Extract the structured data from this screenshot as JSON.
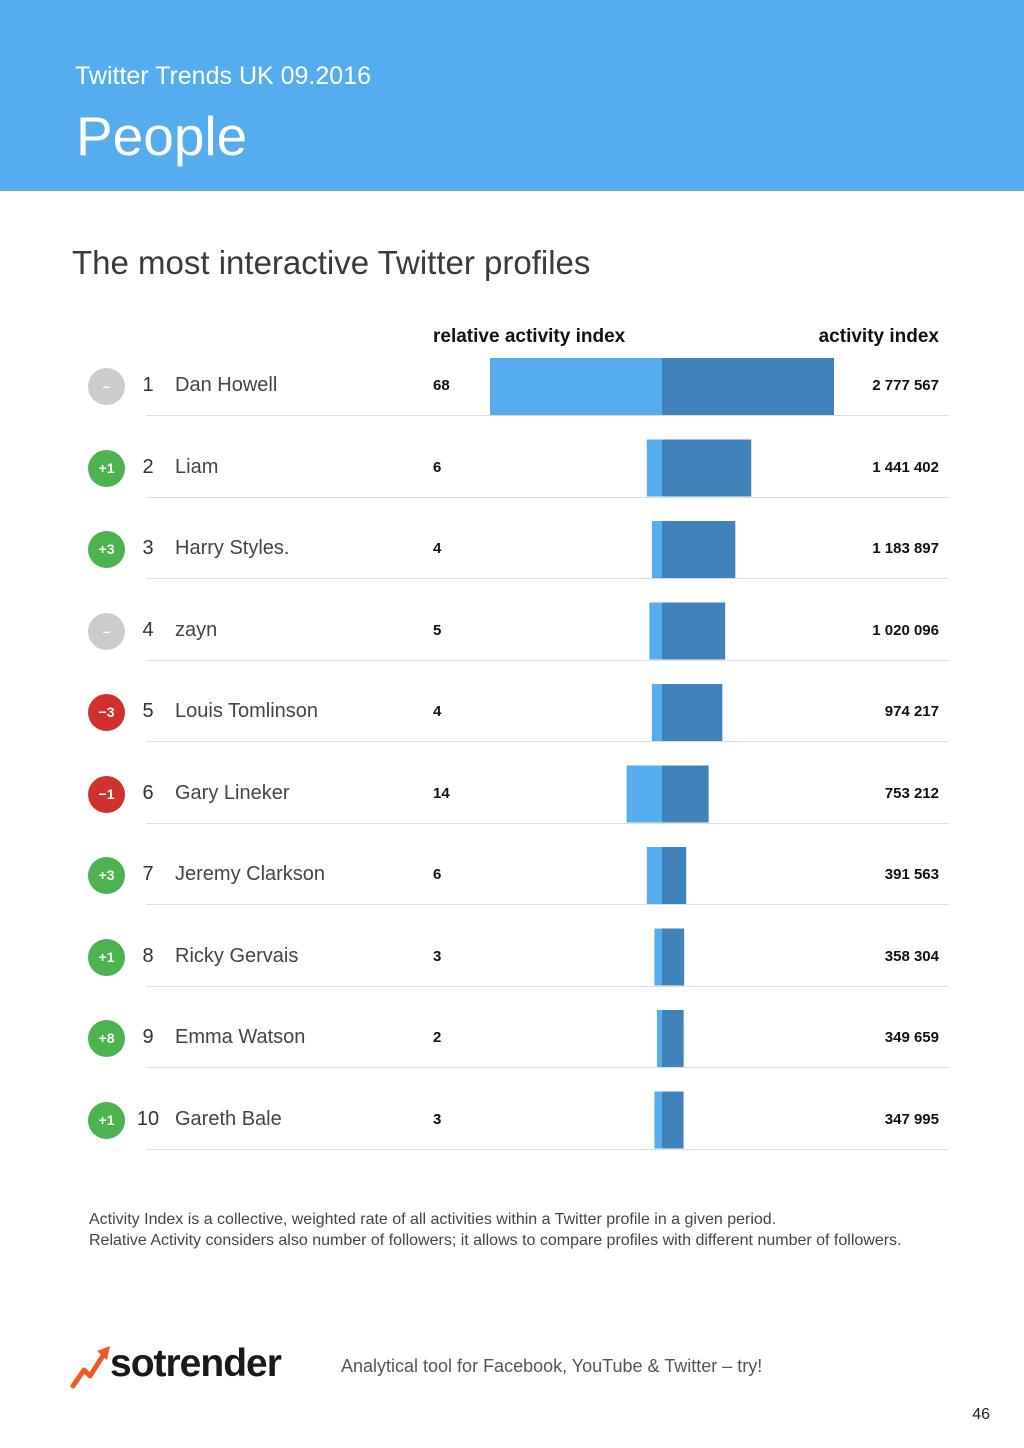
{
  "header": {
    "subtitle": "Twitter Trends UK 09.2016",
    "title": "People"
  },
  "section_title": "The most interactive Twitter profiles",
  "colors": {
    "header_bg": "#55acee",
    "relative_bar": "#55acee",
    "activity_bar": "#3f83ba",
    "badge_up": "#4cb350",
    "badge_down": "#d0312f",
    "badge_same": "#cccccc"
  },
  "chart_data": {
    "type": "bar",
    "column_headers": {
      "relative": "relative activity index",
      "absolute": "activity index"
    },
    "rows": [
      {
        "change": "–",
        "direction": "same",
        "rank": "1",
        "name": "Dan Howell",
        "relative": 68,
        "relative_label": "68",
        "activity": 2777567,
        "activity_label": "2 777 567"
      },
      {
        "change": "+1",
        "direction": "up",
        "rank": "2",
        "name": "Liam",
        "relative": 6,
        "relative_label": "6",
        "activity": 1441402,
        "activity_label": "1 441 402"
      },
      {
        "change": "+3",
        "direction": "up",
        "rank": "3",
        "name": "Harry Styles.",
        "relative": 4,
        "relative_label": "4",
        "activity": 1183897,
        "activity_label": "1 183 897"
      },
      {
        "change": "–",
        "direction": "same",
        "rank": "4",
        "name": "zayn",
        "relative": 5,
        "relative_label": "5",
        "activity": 1020096,
        "activity_label": "1 020 096"
      },
      {
        "change": "−3",
        "direction": "down",
        "rank": "5",
        "name": "Louis Tomlinson",
        "relative": 4,
        "relative_label": "4",
        "activity": 974217,
        "activity_label": "974 217"
      },
      {
        "change": "−1",
        "direction": "down",
        "rank": "6",
        "name": "Gary Lineker",
        "relative": 14,
        "relative_label": "14",
        "activity": 753212,
        "activity_label": "753 212"
      },
      {
        "change": "+3",
        "direction": "up",
        "rank": "7",
        "name": "Jeremy Clarkson",
        "relative": 6,
        "relative_label": "6",
        "activity": 391563,
        "activity_label": "391 563"
      },
      {
        "change": "+1",
        "direction": "up",
        "rank": "8",
        "name": "Ricky Gervais",
        "relative": 3,
        "relative_label": "3",
        "activity": 358304,
        "activity_label": "358 304"
      },
      {
        "change": "+8",
        "direction": "up",
        "rank": "9",
        "name": "Emma Watson",
        "relative": 2,
        "relative_label": "2",
        "activity": 349659,
        "activity_label": "349 659"
      },
      {
        "change": "+1",
        "direction": "up",
        "rank": "10",
        "name": "Gareth Bale",
        "relative": 3,
        "relative_label": "3",
        "activity": 347995,
        "activity_label": "347 995"
      }
    ]
  },
  "notes": {
    "line1": "Activity Index is a collective, weighted rate of all activities within a Twitter profile in a given period.",
    "line2": "Relative Activity considers also number of followers; it allows to compare profiles with different number of followers."
  },
  "footer": {
    "logo_text": "sotrender",
    "tagline": "Analytical tool for Facebook, YouTube & Twitter – try!",
    "page_number": "46"
  }
}
